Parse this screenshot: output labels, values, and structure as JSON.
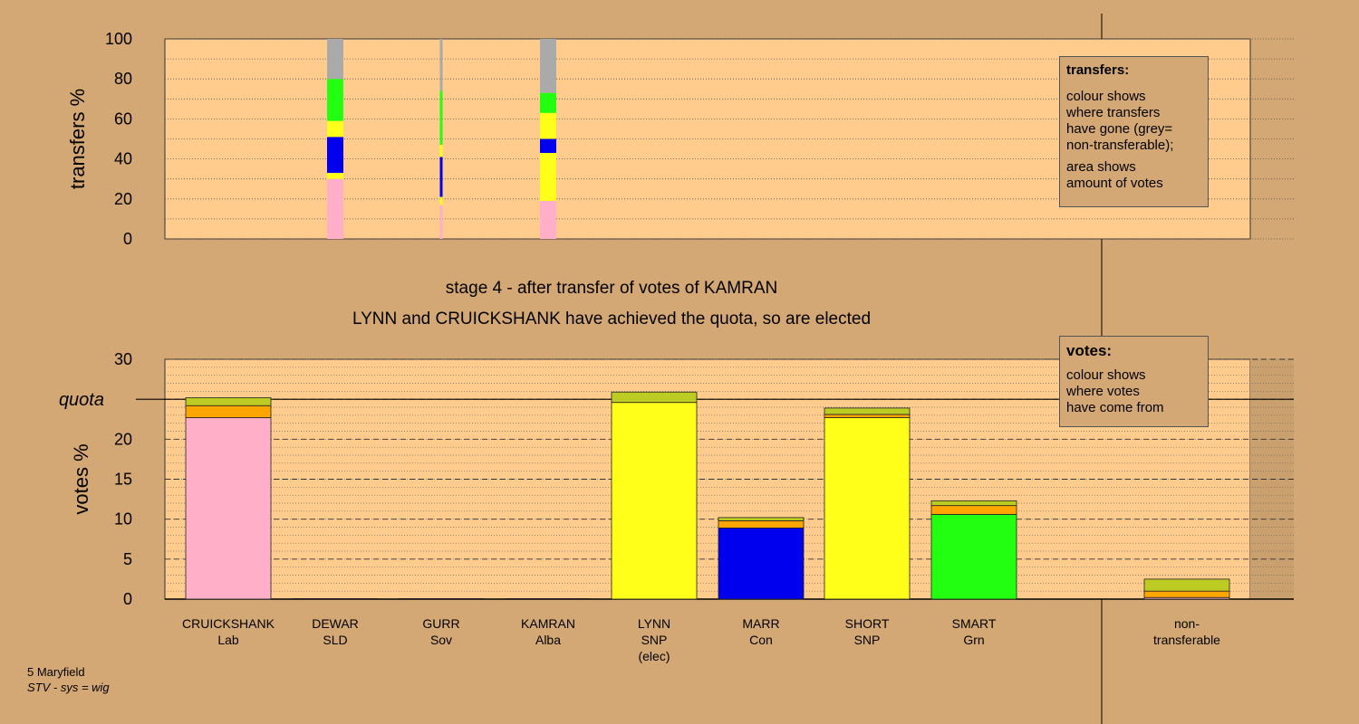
{
  "colors": {
    "page_bg": "#d4a874",
    "plot_bg": "#ffcc8d",
    "Lab": "#ffb0c8",
    "SNP": "#ffff1a",
    "Con": "#0000ee",
    "Grn": "#22ff11",
    "Alba": "#bccc22",
    "Sov": "#ff8c00",
    "SLD": "#ffa500",
    "non_transferable": "#aaaaaa",
    "quota_line": "#000000"
  },
  "heading": {
    "line1": "stage 4 - after transfer of votes of KAMRAN",
    "line2": "LYNN and CRUICKSHANK have achieved the quota, so are elected"
  },
  "legend_transfers": {
    "title": "transfers:",
    "lines": [
      "colour shows",
      "where transfers",
      "have gone (grey=",
      "non-transferable);"
    ],
    "lines2": [
      "area shows",
      "amount of votes"
    ]
  },
  "legend_votes": {
    "title": "votes:",
    "lines": [
      "colour shows",
      "where votes",
      "have come from"
    ]
  },
  "footer": {
    "line1": "5 Maryfield",
    "line2": "STV - sys = wig"
  },
  "chart_data": [
    {
      "type": "bar",
      "stacked": true,
      "ylabel": "transfers %",
      "ylim": [
        0,
        100
      ],
      "yticks": [
        0,
        20,
        40,
        60,
        80,
        100
      ],
      "grid": "dotted",
      "description_note": "",
      "columns": [
        {
          "from": "DEWAR",
          "segments": [
            {
              "party": "Lab",
              "value": 30
            },
            {
              "party": "SNP",
              "value": 3
            },
            {
              "party": "Con",
              "value": 18
            },
            {
              "party": "SNP",
              "value": 8
            },
            {
              "party": "Grn",
              "value": 21
            },
            {
              "party": "non_transferable",
              "value": 20
            }
          ]
        },
        {
          "from": "GURR",
          "segments": [
            {
              "party": "Lab",
              "value": 17
            },
            {
              "party": "SNP",
              "value": 4
            },
            {
              "party": "Con",
              "value": 20
            },
            {
              "party": "SNP",
              "value": 6
            },
            {
              "party": "Grn",
              "value": 27
            },
            {
              "party": "non_transferable",
              "value": 26
            }
          ]
        },
        {
          "from": "KAMRAN",
          "segments": [
            {
              "party": "Lab",
              "value": 19
            },
            {
              "party": "SNP",
              "value": 24
            },
            {
              "party": "Con",
              "value": 7
            },
            {
              "party": "SNP",
              "value": 13
            },
            {
              "party": "Grn",
              "value": 10
            },
            {
              "party": "non_transferable",
              "value": 27
            }
          ]
        }
      ]
    },
    {
      "type": "bar",
      "stacked": true,
      "ylabel": "votes %",
      "ylim": [
        0,
        30
      ],
      "yticks": [
        0,
        5,
        10,
        15,
        20,
        25,
        30
      ],
      "quota": 25,
      "quota_label": "quota",
      "grid": "dashed-and-dotted",
      "candidates": [
        {
          "name": "CRUICKSHANK",
          "party": "Lab",
          "note": "",
          "segments": [
            {
              "party": "Lab",
              "value": 22.7
            },
            {
              "party": "SLD",
              "value": 1.5
            },
            {
              "party": "Alba",
              "value": 1.0
            }
          ]
        },
        {
          "name": "DEWAR",
          "party": "SLD",
          "note": "",
          "segments": []
        },
        {
          "name": "GURR",
          "party": "Sov",
          "note": "",
          "segments": []
        },
        {
          "name": "KAMRAN",
          "party": "Alba",
          "note": "",
          "segments": []
        },
        {
          "name": "LYNN",
          "party": "SNP",
          "note": "(elec)",
          "segments": [
            {
              "party": "SNP",
              "value": 24.6
            },
            {
              "party": "Alba",
              "value": 1.3
            }
          ]
        },
        {
          "name": "MARR",
          "party": "Con",
          "note": "",
          "segments": [
            {
              "party": "Con",
              "value": 8.9
            },
            {
              "party": "SLD",
              "value": 0.9
            },
            {
              "party": "Alba",
              "value": 0.4
            }
          ]
        },
        {
          "name": "SHORT",
          "party": "SNP",
          "note": "",
          "segments": [
            {
              "party": "SNP",
              "value": 22.7
            },
            {
              "party": "SLD",
              "value": 0.4
            },
            {
              "party": "Alba",
              "value": 0.8
            }
          ]
        },
        {
          "name": "SMART",
          "party": "Grn",
          "note": "",
          "segments": [
            {
              "party": "Grn",
              "value": 10.6
            },
            {
              "party": "SLD",
              "value": 1.1
            },
            {
              "party": "Alba",
              "value": 0.6
            }
          ]
        },
        {
          "name": "non-",
          "party": "transferable",
          "note": "",
          "is_nontransferable": true,
          "segments": [
            {
              "party": "Lab",
              "value": 0.2
            },
            {
              "party": "SLD",
              "value": 0.8
            },
            {
              "party": "Alba",
              "value": 1.5
            }
          ]
        }
      ]
    }
  ]
}
